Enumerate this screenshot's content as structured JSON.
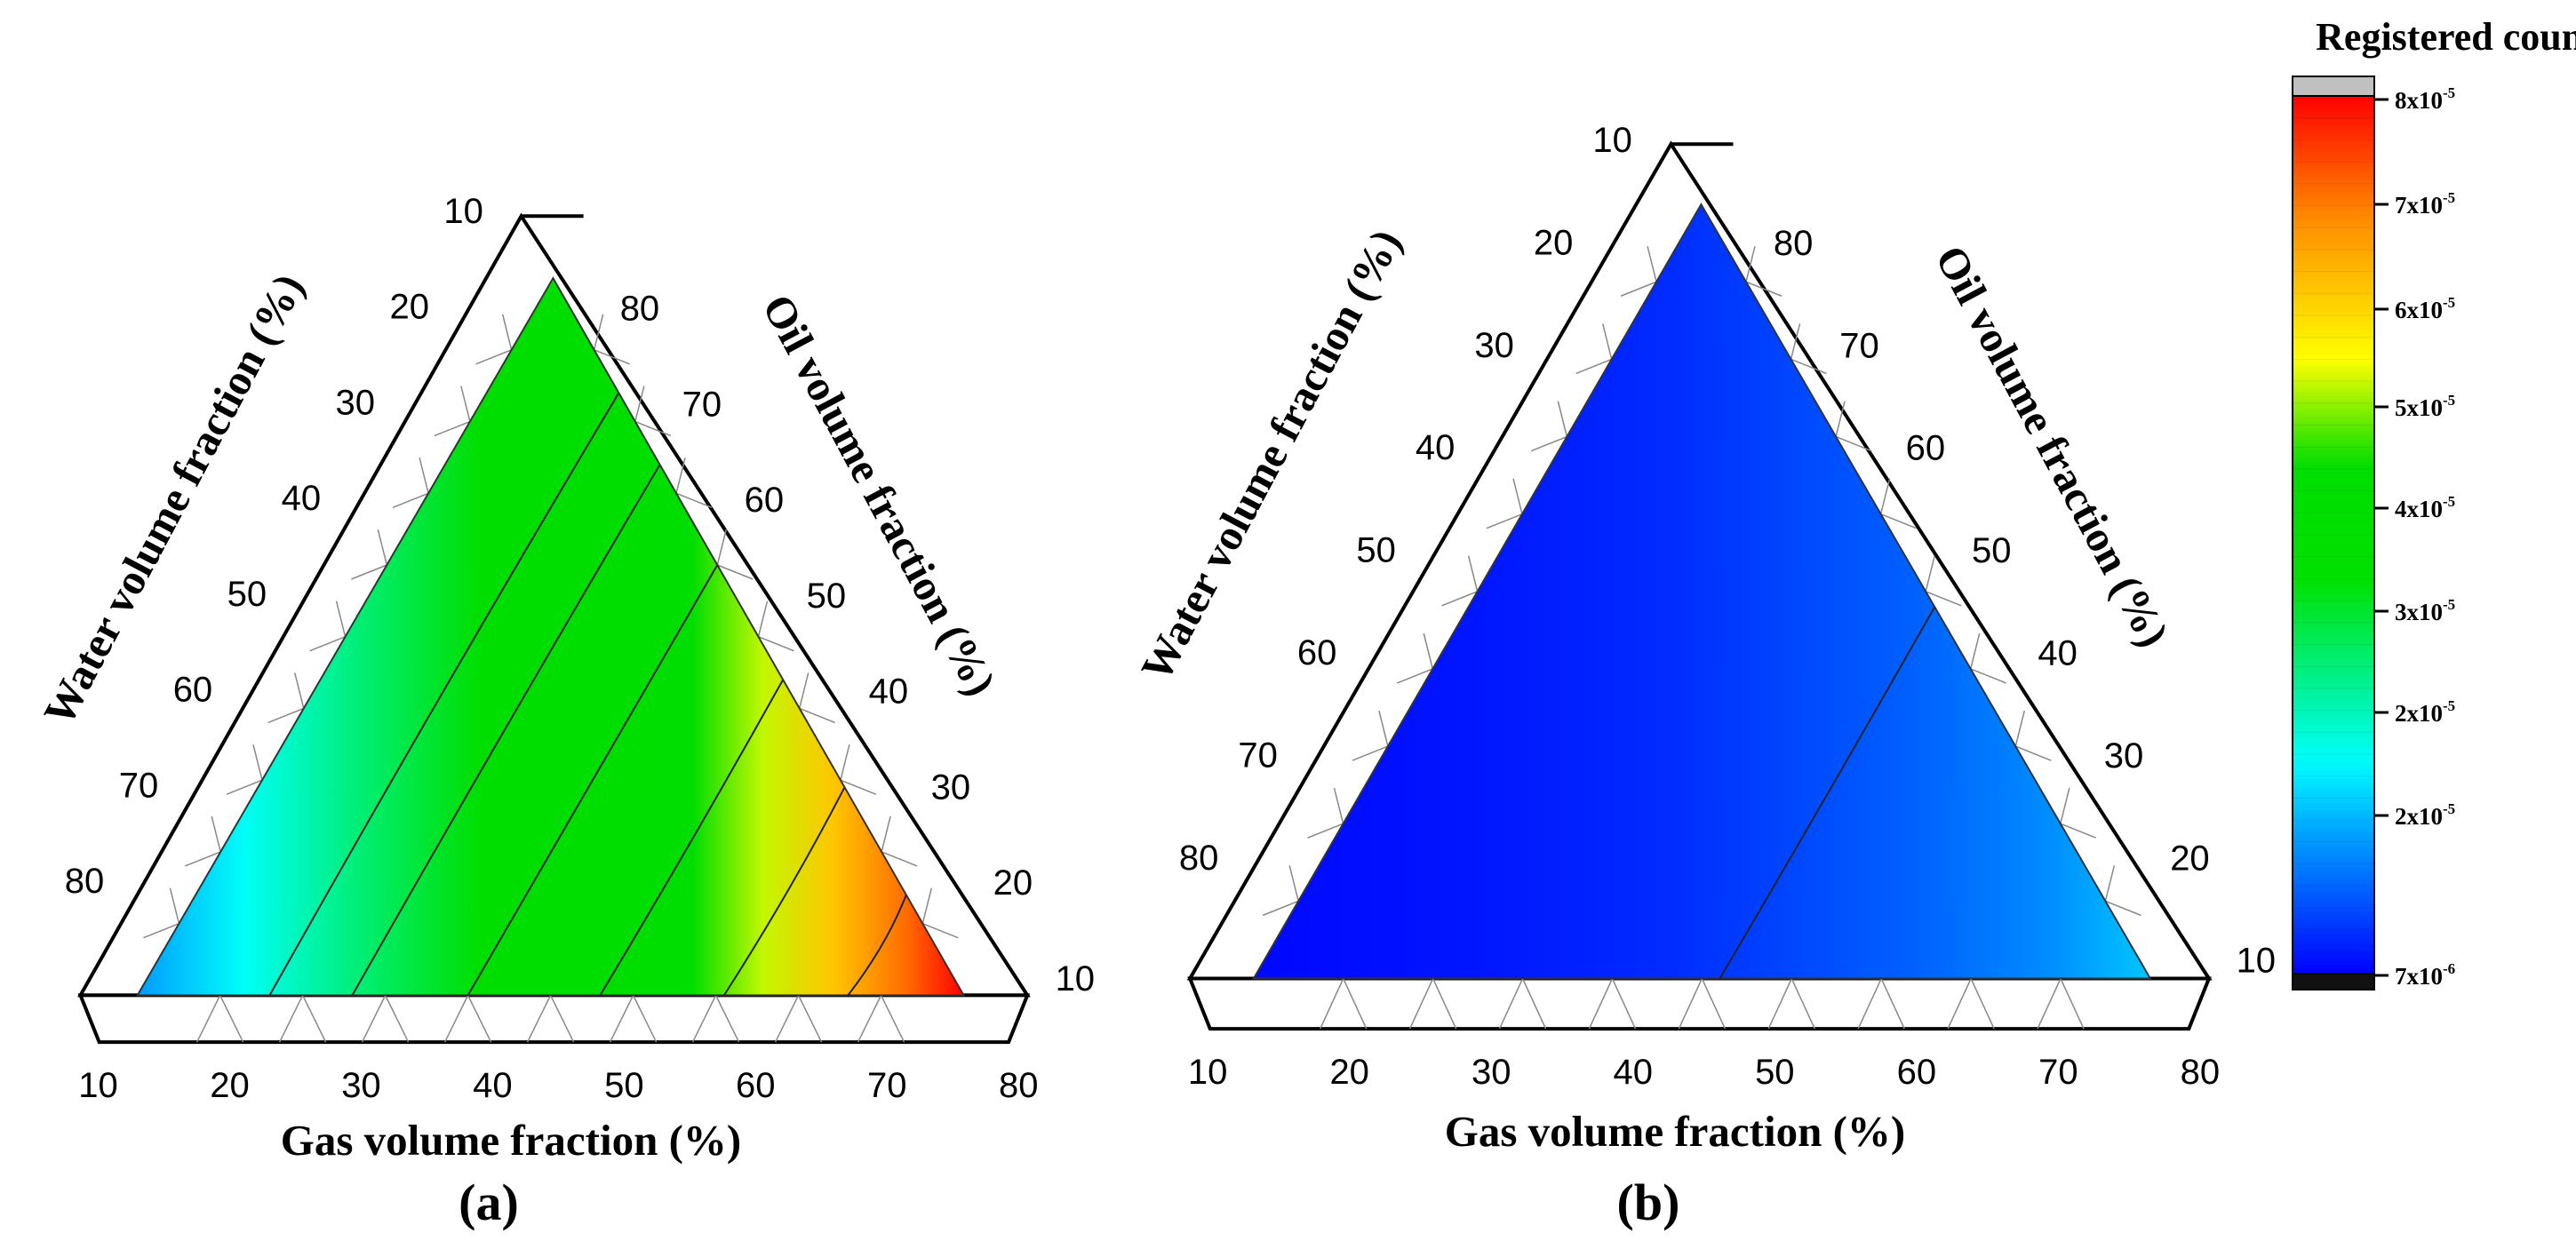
{
  "colorbar": {
    "title": "Registered count",
    "ticks": [
      {
        "mant": "8x10",
        "exp": "-5",
        "value": 8e-05
      },
      {
        "mant": "7x10",
        "exp": "-5",
        "value": 7e-05
      },
      {
        "mant": "6x10",
        "exp": "-5",
        "value": 6e-05
      },
      {
        "mant": "5x10",
        "exp": "-5",
        "value": 5e-05
      },
      {
        "mant": "4x10",
        "exp": "-5",
        "value": 4e-05
      },
      {
        "mant": "3x10",
        "exp": "-5",
        "value": 3e-05
      },
      {
        "mant": "2x10",
        "exp": "-5",
        "value": 2e-05
      },
      {
        "mant": "2x10",
        "exp": "-5",
        "value": 1.5e-05
      },
      {
        "mant": "7x10",
        "exp": "-6",
        "value": 7e-06
      }
    ],
    "colormap": [
      "#000000",
      "#0000ff",
      "#00b8ff",
      "#00ffff",
      "#00e000",
      "#00dd00",
      "#ffff00",
      "#ff8c00",
      "#ff0000",
      "#c0c0c0"
    ]
  },
  "chart_data": [
    {
      "type": "ternary-contour",
      "panel_label": "(a)",
      "xlabel": "Gas volume fraction (%)",
      "left_label": "Water volume fraction (%)",
      "right_label": "Oil volume fraction (%)",
      "bottom_ticks": [
        "10",
        "20",
        "30",
        "40",
        "50",
        "60",
        "70",
        "80"
      ],
      "left_ticks": [
        "10",
        "20",
        "30",
        "40",
        "50",
        "60",
        "70",
        "80"
      ],
      "right_ticks": [
        "80",
        "70",
        "60",
        "50",
        "40",
        "30",
        "20",
        "10"
      ],
      "range": [
        10,
        80
      ],
      "gas_profile": [
        {
          "gas": 13,
          "value": 1.8e-05
        },
        {
          "gas": 22,
          "value": 2.5e-05
        },
        {
          "gas": 32,
          "value": 3.3e-05
        },
        {
          "gas": 42,
          "value": 4.5e-05
        },
        {
          "gas": 52,
          "value": 4.7e-05
        },
        {
          "gas": 60,
          "value": 4.8e-05
        },
        {
          "gas": 66,
          "value": 5.6e-05
        },
        {
          "gas": 72,
          "value": 6.4e-05
        },
        {
          "gas": 78,
          "value": 7.2e-05
        },
        {
          "gas": 83,
          "value": 8e-05
        }
      ]
    },
    {
      "type": "ternary-contour",
      "panel_label": "(b)",
      "xlabel": "Gas volume fraction (%)",
      "left_label": "Water volume fraction (%)",
      "right_label": "Oil volume fraction (%)",
      "bottom_ticks": [
        "10",
        "20",
        "30",
        "40",
        "50",
        "60",
        "70",
        "80"
      ],
      "left_ticks": [
        "10",
        "20",
        "30",
        "40",
        "50",
        "60",
        "70",
        "80"
      ],
      "right_ticks": [
        "80",
        "70",
        "60",
        "50",
        "40",
        "30",
        "20",
        "10"
      ],
      "range": [
        10,
        80
      ],
      "gas_profile": [
        {
          "gas": 13,
          "value": 7.5e-06
        },
        {
          "gas": 30,
          "value": 8.5e-06
        },
        {
          "gas": 45,
          "value": 1e-05
        },
        {
          "gas": 55,
          "value": 1.2e-05
        },
        {
          "gas": 65,
          "value": 1.4e-05
        },
        {
          "gas": 75,
          "value": 1.7e-05
        },
        {
          "gas": 83,
          "value": 2.1e-05
        }
      ]
    }
  ]
}
